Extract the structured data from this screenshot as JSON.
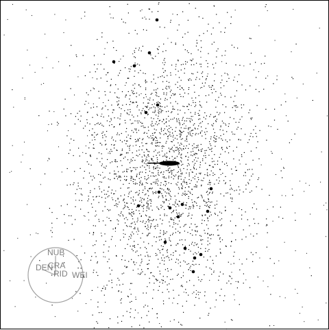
{
  "colors": {
    "background": "#ffffff",
    "points": "#000000",
    "compass": "#a0a0a0",
    "labels": "#808080"
  },
  "compass": {
    "labels": {
      "north": "NUB",
      "center": "CRA",
      "west": "DEN",
      "below_center": "RID",
      "east": "WEI"
    }
  }
}
